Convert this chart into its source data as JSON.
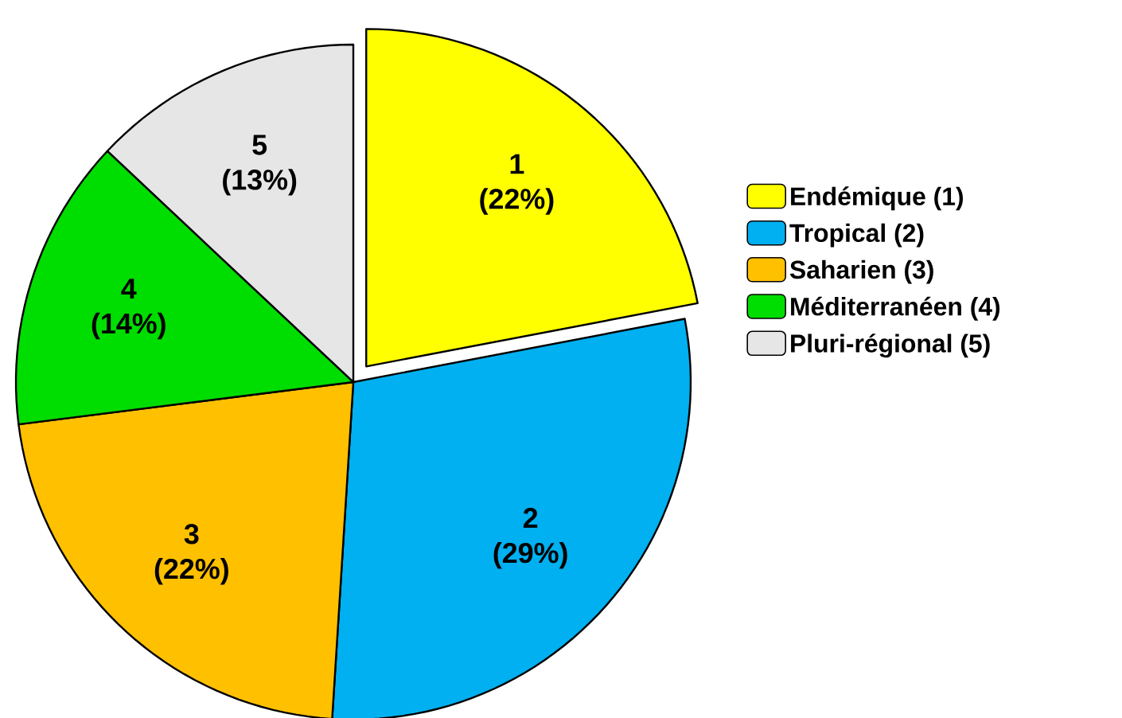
{
  "chart_data": {
    "type": "pie",
    "categories": [
      "Endémique (1)",
      "Tropical (2)",
      "Saharien (3)",
      "Méditerranéen (4)",
      "Pluri-régional (5)"
    ],
    "values": [
      22,
      29,
      22,
      14,
      13
    ],
    "colors": [
      "#ffff00",
      "#00b0f0",
      "#ffc000",
      "#00dd00",
      "#e6e6e6"
    ],
    "value_labels": [
      "1 (22%)",
      "2 (29%)",
      "3 (22%)",
      "4 (14%)",
      "5 (13%)"
    ],
    "legend": "right"
  }
}
